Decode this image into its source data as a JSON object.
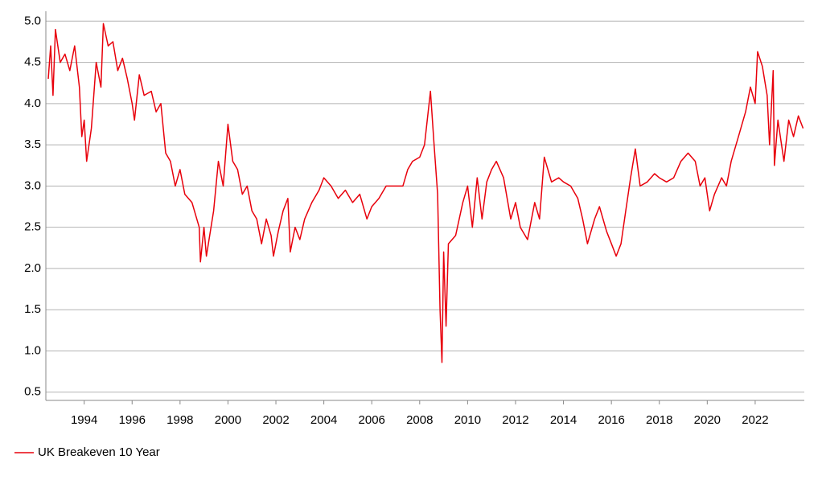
{
  "chart_data": {
    "type": "line",
    "xlim": [
      1992.4,
      2024.05
    ],
    "xticks": [
      1994,
      1996,
      1998,
      2000,
      2002,
      2004,
      2006,
      2008,
      2010,
      2012,
      2014,
      2016,
      2018,
      2020,
      2022
    ],
    "ylim": [
      0.4,
      5.12
    ],
    "yticks": [
      0.5,
      {
        "value": 1,
        "label": "1.0"
      },
      1.5,
      {
        "value": 2,
        "label": "2.0"
      },
      2.5,
      {
        "value": 3,
        "label": "3.0"
      },
      3.5,
      {
        "value": 4,
        "label": "4.0"
      },
      4.5,
      {
        "value": 5,
        "label": "5.0"
      }
    ],
    "grid": true,
    "legend": "bottom-left",
    "series": [
      {
        "name": "UK Breakeven 10 Year",
        "color": "#e8000b",
        "x": [
          1992.5,
          1992.6,
          1992.7,
          1992.8,
          1993.0,
          1993.2,
          1993.4,
          1993.6,
          1993.8,
          1993.9,
          1994.0,
          1994.1,
          1994.3,
          1994.5,
          1994.7,
          1994.8,
          1995.0,
          1995.2,
          1995.4,
          1995.6,
          1995.8,
          1996.0,
          1996.1,
          1996.3,
          1996.5,
          1996.8,
          1997.0,
          1997.2,
          1997.4,
          1997.6,
          1997.8,
          1998.0,
          1998.2,
          1998.5,
          1998.8,
          1998.85,
          1999.0,
          1999.1,
          1999.4,
          1999.6,
          1999.8,
          2000.0,
          2000.2,
          2000.4,
          2000.6,
          2000.8,
          2001.0,
          2001.2,
          2001.4,
          2001.6,
          2001.8,
          2001.9,
          2002.1,
          2002.3,
          2002.5,
          2002.6,
          2002.8,
          2003.0,
          2003.2,
          2003.5,
          2003.8,
          2004.0,
          2004.3,
          2004.6,
          2004.9,
          2005.2,
          2005.5,
          2005.8,
          2006.0,
          2006.3,
          2006.6,
          2007.0,
          2007.3,
          2007.5,
          2007.7,
          2008.0,
          2008.2,
          2008.45,
          2008.6,
          2008.75,
          2008.85,
          2008.93,
          2009.0,
          2009.1,
          2009.2,
          2009.5,
          2009.8,
          2010.0,
          2010.2,
          2010.4,
          2010.6,
          2010.8,
          2011.0,
          2011.2,
          2011.5,
          2011.8,
          2012.0,
          2012.2,
          2012.5,
          2012.8,
          2013.0,
          2013.2,
          2013.5,
          2013.8,
          2014.0,
          2014.3,
          2014.6,
          2014.8,
          2015.0,
          2015.3,
          2015.5,
          2015.8,
          2016.0,
          2016.2,
          2016.4,
          2016.6,
          2016.8,
          2017.0,
          2017.2,
          2017.5,
          2017.8,
          2018.0,
          2018.3,
          2018.6,
          2018.9,
          2019.2,
          2019.5,
          2019.7,
          2019.9,
          2020.1,
          2020.3,
          2020.6,
          2020.8,
          2021.0,
          2021.3,
          2021.6,
          2021.8,
          2022.0,
          2022.1,
          2022.3,
          2022.5,
          2022.6,
          2022.75,
          2022.8,
          2022.95,
          2023.2,
          2023.4,
          2023.6,
          2023.8,
          2024.0
        ],
        "values": [
          4.3,
          4.7,
          4.1,
          4.9,
          4.5,
          4.6,
          4.4,
          4.7,
          4.2,
          3.6,
          3.8,
          3.3,
          3.7,
          4.5,
          4.2,
          4.97,
          4.7,
          4.75,
          4.4,
          4.55,
          4.3,
          4.0,
          3.8,
          4.35,
          4.1,
          4.15,
          3.9,
          4.0,
          3.4,
          3.3,
          3.0,
          3.2,
          2.9,
          2.8,
          2.5,
          2.08,
          2.5,
          2.15,
          2.7,
          3.3,
          3.0,
          3.75,
          3.3,
          3.2,
          2.9,
          3.0,
          2.7,
          2.6,
          2.3,
          2.6,
          2.4,
          2.15,
          2.45,
          2.7,
          2.85,
          2.2,
          2.5,
          2.35,
          2.6,
          2.8,
          2.95,
          3.1,
          3.0,
          2.85,
          2.95,
          2.8,
          2.9,
          2.6,
          2.75,
          2.85,
          3.0,
          3.0,
          3.0,
          3.2,
          3.3,
          3.35,
          3.5,
          4.15,
          3.5,
          2.9,
          1.5,
          0.86,
          2.2,
          1.3,
          2.3,
          2.4,
          2.8,
          3.0,
          2.5,
          3.1,
          2.6,
          3.05,
          3.2,
          3.3,
          3.1,
          2.6,
          2.8,
          2.5,
          2.35,
          2.8,
          2.6,
          3.35,
          3.05,
          3.1,
          3.05,
          3.0,
          2.85,
          2.6,
          2.3,
          2.6,
          2.75,
          2.45,
          2.3,
          2.15,
          2.3,
          2.7,
          3.1,
          3.45,
          3.0,
          3.05,
          3.15,
          3.1,
          3.05,
          3.1,
          3.3,
          3.4,
          3.3,
          3.0,
          3.1,
          2.7,
          2.9,
          3.1,
          3.0,
          3.3,
          3.6,
          3.9,
          4.2,
          4.0,
          4.63,
          4.45,
          4.1,
          3.5,
          4.4,
          3.25,
          3.8,
          3.3,
          3.8,
          3.6,
          3.85,
          3.7
        ]
      }
    ]
  }
}
